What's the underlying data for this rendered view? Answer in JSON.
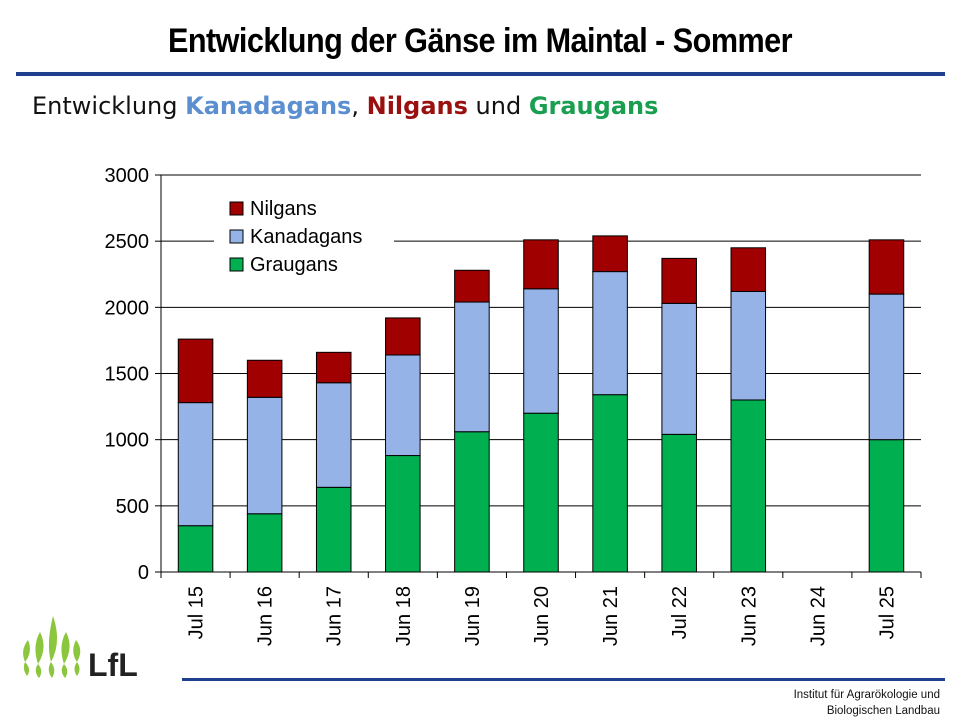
{
  "slide": {
    "title": "Entwicklung der Gänse im Maintal - Sommer",
    "subtitle": {
      "prefix": "Entwicklung ",
      "kanada": "Kanadagans",
      "sep": ", ",
      "nil": "Nilgans",
      "und": " und ",
      "grau": "Graugans"
    }
  },
  "colors": {
    "rule": "#1f3f8f",
    "kanada_text": "#5b8fd0",
    "nil_text": "#9a1010",
    "grau_text": "#1a9e50",
    "graugans": "#00b050",
    "kanadagans": "#95b3e6",
    "nilgans": "#a00000"
  },
  "chart_data": {
    "type": "bar",
    "stacked": true,
    "categories": [
      "Jul 15",
      "Jun 16",
      "Jun 17",
      "Jun 18",
      "Jun 19",
      "Jun 20",
      "Jun 21",
      "Jul 22",
      "Jun 23",
      "Jun 24",
      "Jul 25"
    ],
    "series": [
      {
        "name": "Graugans",
        "color": "#00b050",
        "values": [
          350,
          440,
          640,
          880,
          1060,
          1200,
          1340,
          1040,
          1300,
          0,
          1000
        ]
      },
      {
        "name": "Kanadagans",
        "color": "#95b3e6",
        "values": [
          930,
          880,
          790,
          760,
          980,
          940,
          930,
          990,
          820,
          0,
          1100
        ]
      },
      {
        "name": "Nilgans",
        "color": "#a00000",
        "values": [
          480,
          280,
          230,
          280,
          240,
          370,
          270,
          340,
          330,
          0,
          410
        ]
      }
    ],
    "legend_order": [
      "Nilgans",
      "Kanadagans",
      "Graugans"
    ],
    "legend_position": "top-left",
    "ylim": [
      0,
      3000
    ],
    "yticks": [
      "0",
      "500",
      "1000",
      "1500",
      "2000",
      "2500",
      "3000"
    ],
    "grid": true
  },
  "footer": {
    "logo_text": "LfL",
    "institute_line1": "Institut für Agrarökologie und",
    "institute_line2": "Biologischen Landbau"
  }
}
